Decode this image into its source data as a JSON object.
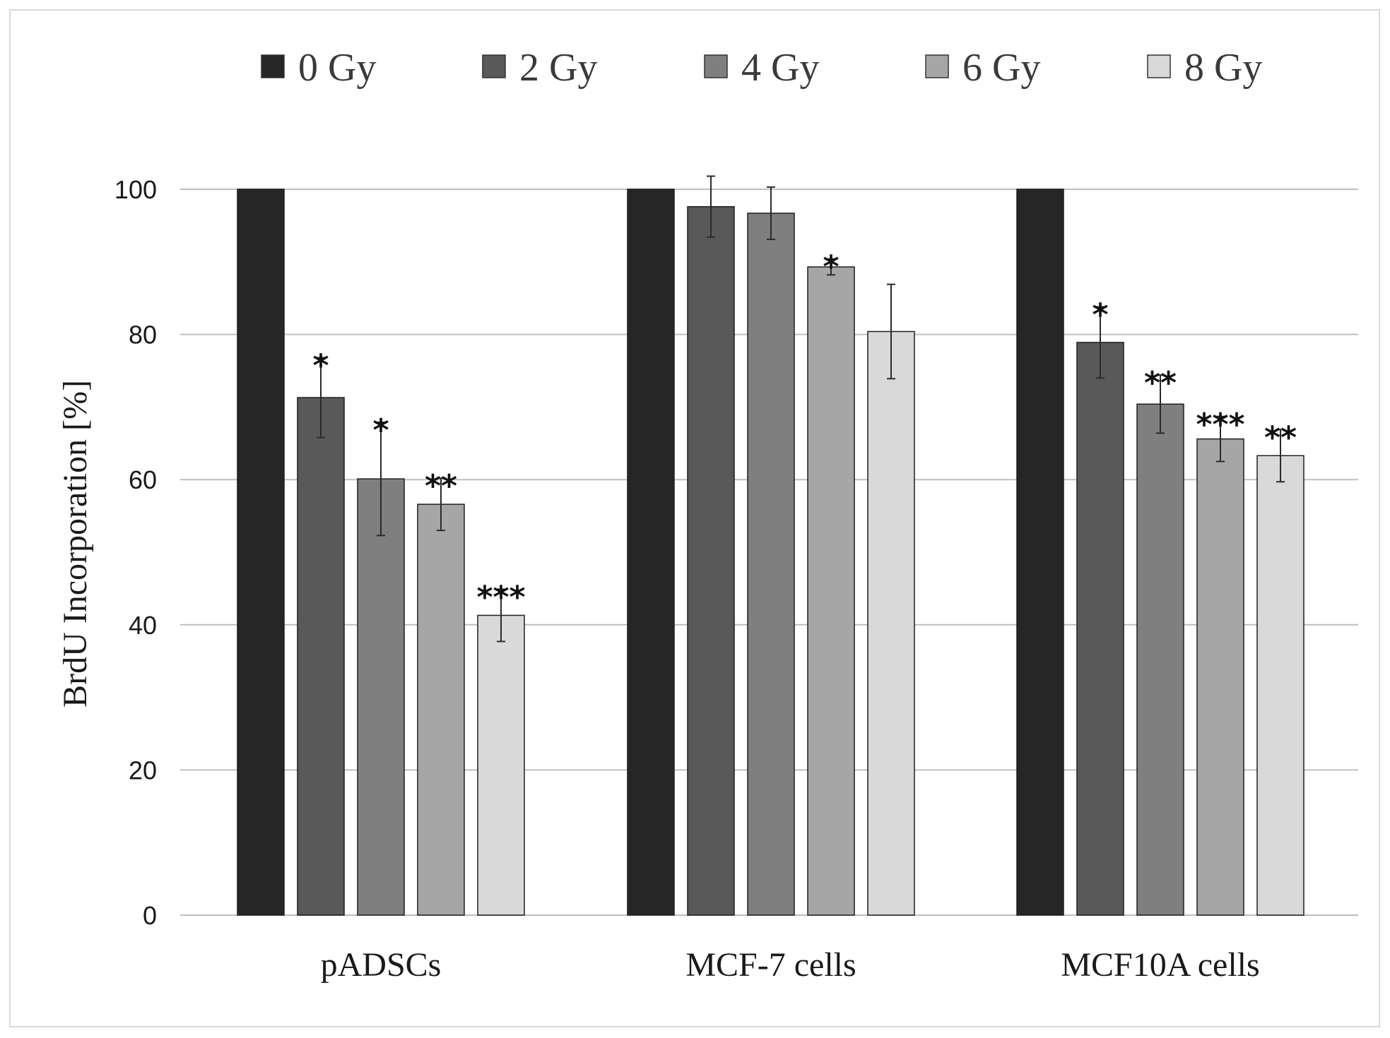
{
  "chart_data": {
    "type": "bar",
    "ylabel": "BrdU Incorporation [%]",
    "ylim": [
      0,
      100
    ],
    "yticks": [
      0,
      20,
      40,
      60,
      80,
      100
    ],
    "grid": true,
    "legend_position": "top",
    "categories": [
      "pADSCs",
      "MCF-7 cells",
      "MCF10A cells"
    ],
    "series": [
      {
        "name": "0 Gy",
        "color": "#262626",
        "values": [
          100,
          100,
          100
        ],
        "errors": [
          null,
          null,
          null
        ],
        "significance": [
          "",
          "",
          ""
        ]
      },
      {
        "name": "2 Gy",
        "color": "#595959",
        "values": [
          71.3,
          97.6,
          78.9
        ],
        "errors": [
          5.5,
          4.2,
          4.9
        ],
        "significance": [
          "*",
          "",
          "*"
        ]
      },
      {
        "name": "4 Gy",
        "color": "#7f7f7f",
        "values": [
          60.1,
          96.7,
          70.4
        ],
        "errors": [
          7.8,
          3.6,
          4.0
        ],
        "significance": [
          "*",
          "",
          "**"
        ]
      },
      {
        "name": "6 Gy",
        "color": "#a6a6a6",
        "values": [
          56.6,
          89.3,
          65.6
        ],
        "errors": [
          3.6,
          1.1,
          3.1
        ],
        "significance": [
          "**",
          "*",
          "***"
        ]
      },
      {
        "name": "8 Gy",
        "color": "#d9d9d9",
        "values": [
          41.3,
          80.4,
          63.3
        ],
        "errors": [
          3.6,
          6.5,
          3.6
        ],
        "significance": [
          "***",
          "",
          "**"
        ]
      }
    ]
  }
}
